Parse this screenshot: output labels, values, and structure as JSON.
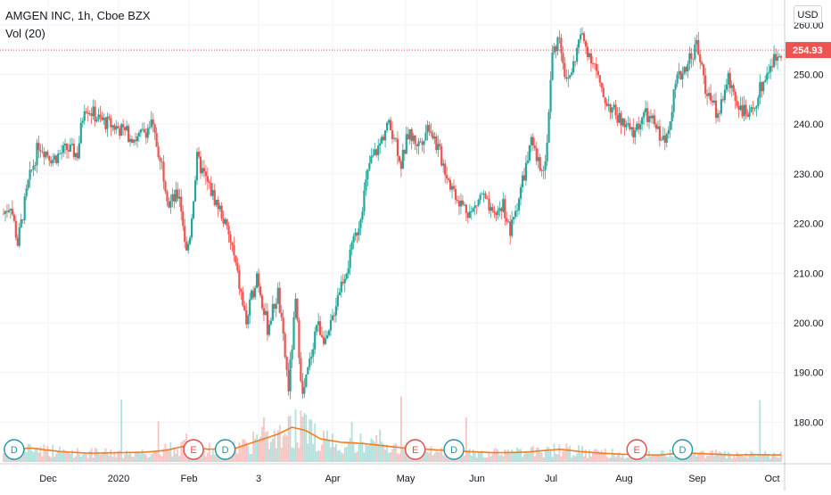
{
  "legend": {
    "symbol_line": "AMGEN INC, 1h, Cboe BZX",
    "volume_line": "Vol (20)"
  },
  "currency": "USD",
  "colors": {
    "up": "#26a69a",
    "down": "#ef5350",
    "volume_ma": "#f57c20",
    "grid": "#f0f3fa",
    "axis_text": "#131722",
    "price_line": "#ef5350",
    "dividend": "#2196a6",
    "earnings": "#e04b4b"
  },
  "chart_data": {
    "type": "candlestick",
    "title": "AMGEN INC, 1h, Cboe BZX",
    "y_axis": {
      "position": "right",
      "ticks": [
        180,
        190,
        200,
        210,
        220,
        230,
        240,
        250,
        260
      ],
      "tick_labels": [
        "180.00",
        "190.00",
        "200.00",
        "210.00",
        "220.00",
        "230.00",
        "240.00",
        "250.00",
        "260.00"
      ],
      "range": [
        172,
        265
      ]
    },
    "x_axis": {
      "tick_labels": [
        "Dec",
        "2020",
        "Feb",
        "3",
        "Apr",
        "May",
        "Jun",
        "Jul",
        "Aug",
        "Sep",
        "Oct"
      ]
    },
    "last_price": 254.93,
    "last_price_label": "254.93",
    "price_path": [
      {
        "t": 0,
        "p": 222
      },
      {
        "t": 2,
        "p": 224
      },
      {
        "t": 4,
        "p": 216
      },
      {
        "t": 7,
        "p": 228
      },
      {
        "t": 10,
        "p": 236
      },
      {
        "t": 14,
        "p": 233
      },
      {
        "t": 18,
        "p": 235
      },
      {
        "t": 21,
        "p": 234
      },
      {
        "t": 23,
        "p": 244
      },
      {
        "t": 27,
        "p": 241
      },
      {
        "t": 33,
        "p": 239
      },
      {
        "t": 38,
        "p": 237
      },
      {
        "t": 42,
        "p": 240
      },
      {
        "t": 45,
        "p": 232
      },
      {
        "t": 47,
        "p": 224
      },
      {
        "t": 50,
        "p": 226
      },
      {
        "t": 52,
        "p": 214
      },
      {
        "t": 53,
        "p": 218
      },
      {
        "t": 55,
        "p": 233
      },
      {
        "t": 58,
        "p": 228
      },
      {
        "t": 62,
        "p": 222
      },
      {
        "t": 65,
        "p": 215
      },
      {
        "t": 69,
        "p": 200
      },
      {
        "t": 72,
        "p": 210
      },
      {
        "t": 75,
        "p": 199
      },
      {
        "t": 78,
        "p": 206
      },
      {
        "t": 81,
        "p": 187
      },
      {
        "t": 83,
        "p": 204
      },
      {
        "t": 85,
        "p": 185
      },
      {
        "t": 87,
        "p": 192
      },
      {
        "t": 89,
        "p": 200
      },
      {
        "t": 92,
        "p": 196
      },
      {
        "t": 95,
        "p": 206
      },
      {
        "t": 98,
        "p": 212
      },
      {
        "t": 101,
        "p": 220
      },
      {
        "t": 104,
        "p": 232
      },
      {
        "t": 107,
        "p": 236
      },
      {
        "t": 109,
        "p": 240
      },
      {
        "t": 111,
        "p": 238
      },
      {
        "t": 113,
        "p": 232
      },
      {
        "t": 115,
        "p": 238
      },
      {
        "t": 118,
        "p": 236
      },
      {
        "t": 121,
        "p": 240
      },
      {
        "t": 124,
        "p": 234
      },
      {
        "t": 127,
        "p": 228
      },
      {
        "t": 130,
        "p": 224
      },
      {
        "t": 133,
        "p": 222
      },
      {
        "t": 136,
        "p": 226
      },
      {
        "t": 139,
        "p": 221
      },
      {
        "t": 142,
        "p": 224
      },
      {
        "t": 144,
        "p": 218
      },
      {
        "t": 147,
        "p": 227
      },
      {
        "t": 150,
        "p": 236
      },
      {
        "t": 152,
        "p": 232
      },
      {
        "t": 154,
        "p": 232
      },
      {
        "t": 156,
        "p": 254
      },
      {
        "t": 158,
        "p": 258
      },
      {
        "t": 160,
        "p": 248
      },
      {
        "t": 162,
        "p": 252
      },
      {
        "t": 164,
        "p": 258
      },
      {
        "t": 166,
        "p": 255
      },
      {
        "t": 168,
        "p": 252
      },
      {
        "t": 170,
        "p": 246
      },
      {
        "t": 173,
        "p": 243
      },
      {
        "t": 176,
        "p": 240
      },
      {
        "t": 179,
        "p": 238
      },
      {
        "t": 182,
        "p": 242
      },
      {
        "t": 185,
        "p": 240
      },
      {
        "t": 188,
        "p": 236
      },
      {
        "t": 191,
        "p": 248
      },
      {
        "t": 194,
        "p": 252
      },
      {
        "t": 197,
        "p": 256
      },
      {
        "t": 200,
        "p": 246
      },
      {
        "t": 203,
        "p": 242
      },
      {
        "t": 206,
        "p": 249
      },
      {
        "t": 209,
        "p": 244
      },
      {
        "t": 212,
        "p": 241
      },
      {
        "t": 215,
        "p": 247
      },
      {
        "t": 218,
        "p": 252
      },
      {
        "t": 221,
        "p": 254.93
      }
    ],
    "volume_series": {
      "name": "Vol (20)",
      "ma": [
        {
          "t": 0,
          "v": 0.55
        },
        {
          "t": 8,
          "v": 0.6
        },
        {
          "t": 16,
          "v": 0.45
        },
        {
          "t": 24,
          "v": 0.38
        },
        {
          "t": 32,
          "v": 0.4
        },
        {
          "t": 40,
          "v": 0.42
        },
        {
          "t": 46,
          "v": 0.5
        },
        {
          "t": 52,
          "v": 0.7
        },
        {
          "t": 58,
          "v": 0.55
        },
        {
          "t": 66,
          "v": 0.6
        },
        {
          "t": 72,
          "v": 0.9
        },
        {
          "t": 78,
          "v": 1.2
        },
        {
          "t": 82,
          "v": 1.5
        },
        {
          "t": 86,
          "v": 1.35
        },
        {
          "t": 90,
          "v": 1.0
        },
        {
          "t": 96,
          "v": 0.85
        },
        {
          "t": 102,
          "v": 0.8
        },
        {
          "t": 108,
          "v": 0.7
        },
        {
          "t": 114,
          "v": 0.6
        },
        {
          "t": 120,
          "v": 0.55
        },
        {
          "t": 126,
          "v": 0.5
        },
        {
          "t": 132,
          "v": 0.45
        },
        {
          "t": 140,
          "v": 0.4
        },
        {
          "t": 148,
          "v": 0.42
        },
        {
          "t": 154,
          "v": 0.5
        },
        {
          "t": 158,
          "v": 0.55
        },
        {
          "t": 164,
          "v": 0.45
        },
        {
          "t": 170,
          "v": 0.38
        },
        {
          "t": 178,
          "v": 0.32
        },
        {
          "t": 186,
          "v": 0.3
        },
        {
          "t": 194,
          "v": 0.4
        },
        {
          "t": 200,
          "v": 0.35
        },
        {
          "t": 208,
          "v": 0.3
        },
        {
          "t": 214,
          "v": 0.32
        },
        {
          "t": 221,
          "v": 0.3
        }
      ]
    },
    "event_markers": [
      {
        "kind": "dividend",
        "letter": "D",
        "t": 3
      },
      {
        "kind": "earnings",
        "letter": "E",
        "t": 54
      },
      {
        "kind": "dividend",
        "letter": "D",
        "t": 63
      },
      {
        "kind": "earnings",
        "letter": "E",
        "t": 117
      },
      {
        "kind": "dividend",
        "letter": "D",
        "t": 128
      },
      {
        "kind": "earnings",
        "letter": "E",
        "t": 180
      },
      {
        "kind": "dividend",
        "letter": "D",
        "t": 193
      }
    ]
  }
}
